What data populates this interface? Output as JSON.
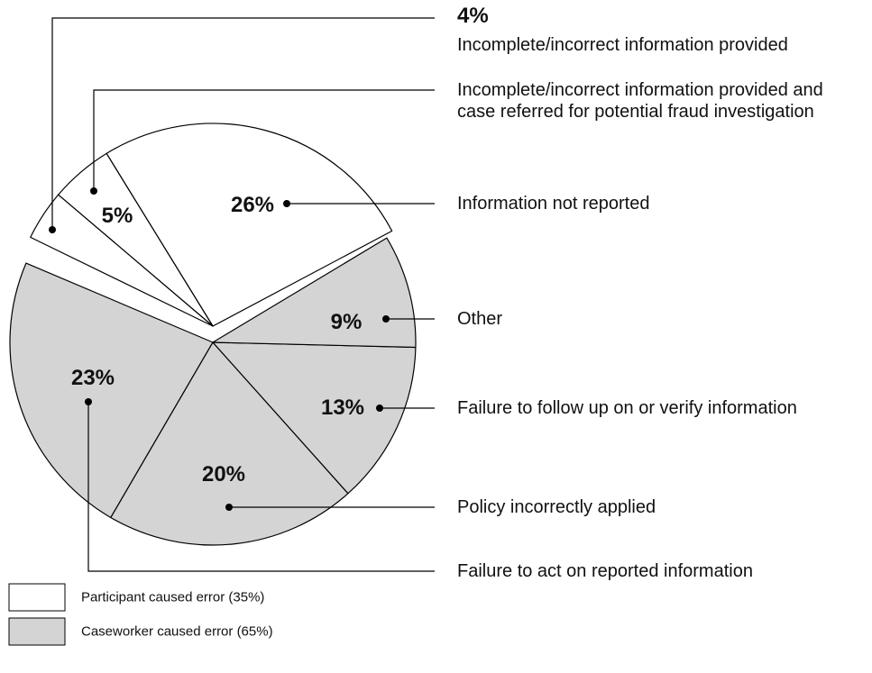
{
  "chart_data": {
    "type": "pie",
    "series": [
      {
        "name": "Participant caused error (35%)",
        "color": "#ffffff",
        "categories": [
          "Information not reported",
          "Incomplete/incorrect information provided and case referred for potential fraud investigation",
          "Incomplete/incorrect information provided"
        ],
        "values": [
          26,
          5,
          4
        ],
        "value_labels": [
          "26%",
          "5%",
          "4%"
        ]
      },
      {
        "name": "Caseworker caused error (65%)",
        "color": "#d4d4d4",
        "categories": [
          "Failure to act on reported information",
          "Policy incorrectly applied",
          "Failure to follow up on or verify information",
          "Other"
        ],
        "values": [
          23,
          20,
          13,
          9
        ],
        "value_labels": [
          "23%",
          "20%",
          "13%",
          "9%"
        ]
      }
    ]
  }
}
